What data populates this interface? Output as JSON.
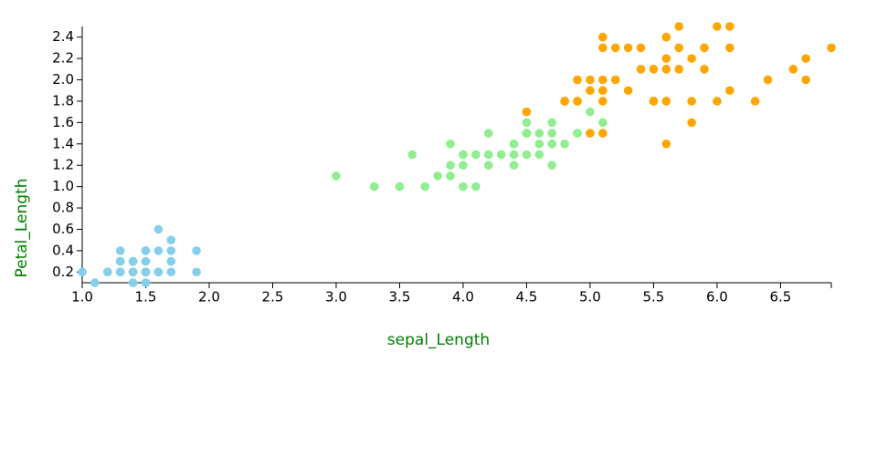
{
  "chart_data": {
    "type": "scatter",
    "x_label": "sepal_Length",
    "y_label": "Petal_Length",
    "xlim": [
      1.0,
      6.9
    ],
    "ylim": [
      0.1,
      2.5
    ],
    "xticks": [
      {
        "value": 1,
        "label": "1.0"
      },
      1.5,
      {
        "value": 2,
        "label": "2.0"
      },
      2.5,
      {
        "value": 3,
        "label": "3.0"
      },
      3.5,
      {
        "value": 4,
        "label": "4.0"
      },
      4.5,
      {
        "value": 5,
        "label": "5.0"
      },
      5.5,
      {
        "value": 6,
        "label": "6.0"
      },
      6.5
    ],
    "yticks": [
      0.2,
      0.4,
      0.6,
      0.8,
      {
        "value": 1,
        "label": "1.0"
      },
      1.2,
      1.4,
      1.6,
      1.8,
      {
        "value": 2,
        "label": "2.0"
      },
      2.2,
      2.4
    ],
    "series": [
      {
        "color": "#87ceeb",
        "x": [
          1.4,
          1.4,
          1.3,
          1.5,
          1.4,
          1.7,
          1.4,
          1.5,
          1.4,
          1.5,
          1.5,
          1.6,
          1.4,
          1.1,
          1.2,
          1.5,
          1.3,
          1.4,
          1.7,
          1.5,
          1.7,
          1.5,
          1.0,
          1.7,
          1.9,
          1.6,
          1.6,
          1.5,
          1.4,
          1.6,
          1.6,
          1.5,
          1.5,
          1.4,
          1.5,
          1.2,
          1.3,
          1.4,
          1.3,
          1.5,
          1.3,
          1.3,
          1.3,
          1.6,
          1.9,
          1.4,
          1.6,
          1.4,
          1.5,
          1.4
        ],
        "y": [
          0.2,
          0.2,
          0.2,
          0.2,
          0.2,
          0.4,
          0.3,
          0.2,
          0.2,
          0.1,
          0.2,
          0.2,
          0.1,
          0.1,
          0.2,
          0.4,
          0.4,
          0.3,
          0.3,
          0.3,
          0.2,
          0.4,
          0.2,
          0.5,
          0.2,
          0.2,
          0.4,
          0.2,
          0.2,
          0.2,
          0.2,
          0.4,
          0.1,
          0.2,
          0.2,
          0.2,
          0.2,
          0.1,
          0.2,
          0.2,
          0.3,
          0.3,
          0.2,
          0.6,
          0.4,
          0.3,
          0.2,
          0.2,
          0.2,
          0.2
        ]
      },
      {
        "color": "#90ee90",
        "x": [
          4.7,
          4.5,
          4.9,
          4.0,
          4.6,
          4.5,
          4.7,
          3.3,
          4.6,
          3.9,
          3.5,
          4.2,
          4.0,
          4.7,
          3.6,
          4.4,
          4.5,
          4.1,
          4.5,
          3.9,
          4.8,
          4.0,
          4.9,
          4.7,
          4.3,
          4.4,
          4.8,
          5.0,
          4.5,
          3.5,
          3.8,
          3.7,
          3.9,
          5.1,
          4.5,
          4.5,
          4.7,
          4.4,
          4.1,
          4.0,
          4.4,
          4.6,
          4.0,
          3.3,
          4.2,
          4.2,
          4.2,
          4.3,
          3.0,
          4.1
        ],
        "y": [
          1.4,
          1.5,
          1.5,
          1.3,
          1.5,
          1.3,
          1.6,
          1.0,
          1.3,
          1.4,
          1.0,
          1.5,
          1.0,
          1.4,
          1.3,
          1.4,
          1.5,
          1.0,
          1.5,
          1.1,
          1.8,
          1.3,
          1.5,
          1.2,
          1.3,
          1.4,
          1.4,
          1.7,
          1.5,
          1.0,
          1.1,
          1.0,
          1.2,
          1.6,
          1.5,
          1.6,
          1.5,
          1.3,
          1.3,
          1.3,
          1.2,
          1.4,
          1.2,
          1.0,
          1.3,
          1.2,
          1.3,
          1.3,
          1.1,
          1.3
        ]
      },
      {
        "color": "#ffa500",
        "x": [
          6.0,
          5.1,
          5.9,
          5.6,
          5.8,
          6.6,
          4.5,
          6.3,
          5.8,
          6.1,
          5.1,
          5.3,
          5.5,
          5.0,
          5.1,
          5.3,
          5.5,
          6.7,
          6.9,
          5.0,
          5.7,
          4.9,
          6.7,
          4.9,
          5.7,
          6.0,
          4.8,
          4.9,
          5.6,
          5.8,
          6.1,
          6.4,
          5.6,
          5.1,
          5.6,
          6.1,
          5.6,
          5.5,
          4.8,
          5.4,
          5.6,
          5.1,
          5.1,
          5.9,
          5.7,
          5.2,
          5.0,
          5.2,
          5.4,
          5.1
        ],
        "y": [
          2.5,
          1.9,
          2.1,
          1.8,
          2.2,
          2.1,
          1.7,
          1.8,
          1.8,
          2.5,
          2.0,
          1.9,
          2.1,
          2.0,
          2.4,
          2.3,
          1.8,
          2.2,
          2.3,
          1.5,
          2.3,
          2.0,
          2.0,
          1.8,
          2.1,
          1.8,
          1.8,
          1.8,
          2.1,
          1.6,
          1.9,
          2.0,
          2.2,
          1.5,
          1.4,
          2.3,
          2.4,
          1.8,
          1.8,
          2.1,
          2.4,
          2.3,
          1.9,
          2.3,
          2.5,
          2.3,
          1.9,
          2.0,
          2.3,
          1.8
        ]
      }
    ]
  }
}
